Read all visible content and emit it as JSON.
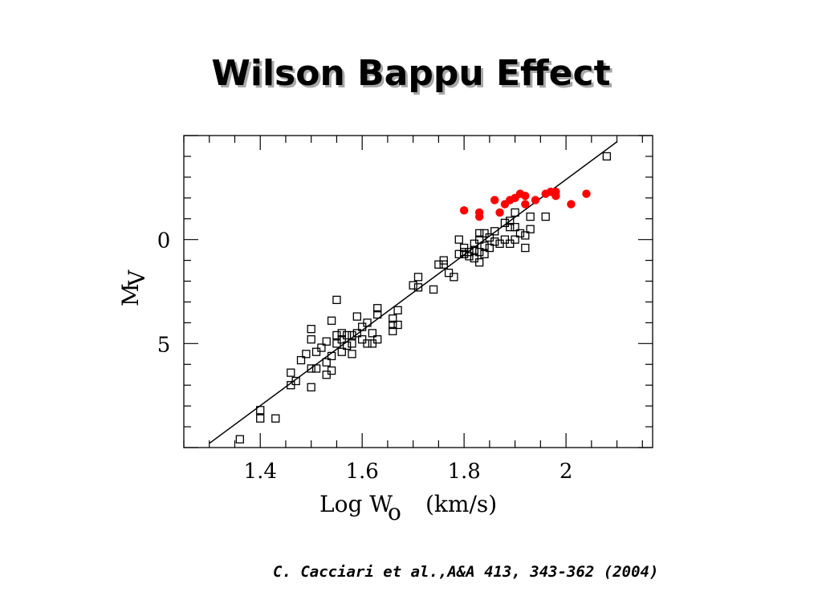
{
  "slide": {
    "title": "Wilson Bappu Effect",
    "citation": "C. Cacciari et al.,A&A 413, 343-362 (2004)"
  },
  "chart_data": {
    "type": "scatter",
    "xlabel": "Log W",
    "xlabel_subscript": "o",
    "xlabel_unit": "(km/s)",
    "ylabel": "M",
    "ylabel_subscript": "V",
    "xlim": [
      1.25,
      2.17
    ],
    "ylim": [
      10,
      -5
    ],
    "y_inverted": true,
    "xticks": [
      1.4,
      1.6,
      1.8,
      2.0
    ],
    "xtick_labels": [
      "1.4",
      "1.6",
      "1.8",
      "2"
    ],
    "yticks": [
      0,
      5
    ],
    "ytick_labels": [
      "0",
      "5"
    ],
    "grid": false,
    "fit_line": {
      "x": [
        1.3,
        2.1
      ],
      "y": [
        9.8,
        -4.7
      ],
      "color": "#000000"
    },
    "series": [
      {
        "marker": "open-square",
        "color": "#000000",
        "points": [
          [
            1.36,
            9.6
          ],
          [
            1.4,
            8.2
          ],
          [
            1.4,
            8.6
          ],
          [
            1.43,
            8.6
          ],
          [
            1.46,
            6.4
          ],
          [
            1.46,
            7.0
          ],
          [
            1.47,
            6.8
          ],
          [
            1.48,
            5.8
          ],
          [
            1.49,
            5.5
          ],
          [
            1.5,
            4.3
          ],
          [
            1.5,
            4.8
          ],
          [
            1.5,
            6.2
          ],
          [
            1.5,
            7.1
          ],
          [
            1.51,
            5.4
          ],
          [
            1.51,
            6.2
          ],
          [
            1.52,
            5.2
          ],
          [
            1.53,
            4.9
          ],
          [
            1.53,
            5.9
          ],
          [
            1.53,
            6.5
          ],
          [
            1.54,
            3.9
          ],
          [
            1.54,
            5.6
          ],
          [
            1.54,
            6.3
          ],
          [
            1.55,
            2.9
          ],
          [
            1.55,
            4.6
          ],
          [
            1.55,
            5.0
          ],
          [
            1.56,
            4.5
          ],
          [
            1.56,
            5.4
          ],
          [
            1.56,
            4.8
          ],
          [
            1.57,
            4.6
          ],
          [
            1.57,
            5.1
          ],
          [
            1.58,
            4.6
          ],
          [
            1.58,
            5.0
          ],
          [
            1.58,
            5.5
          ],
          [
            1.59,
            3.7
          ],
          [
            1.59,
            4.5
          ],
          [
            1.6,
            4.2
          ],
          [
            1.6,
            4.8
          ],
          [
            1.61,
            4.0
          ],
          [
            1.61,
            5.0
          ],
          [
            1.62,
            4.5
          ],
          [
            1.62,
            5.0
          ],
          [
            1.63,
            3.3
          ],
          [
            1.63,
            3.6
          ],
          [
            1.63,
            4.8
          ],
          [
            1.66,
            3.8
          ],
          [
            1.66,
            4.1
          ],
          [
            1.66,
            4.4
          ],
          [
            1.67,
            3.4
          ],
          [
            1.67,
            4.1
          ],
          [
            1.7,
            2.2
          ],
          [
            1.71,
            1.8
          ],
          [
            1.71,
            2.3
          ],
          [
            1.74,
            2.4
          ],
          [
            1.75,
            1.2
          ],
          [
            1.76,
            1.0
          ],
          [
            1.76,
            1.2
          ],
          [
            1.77,
            1.6
          ],
          [
            1.78,
            1.8
          ],
          [
            1.79,
            0.7
          ],
          [
            1.79,
            0.0
          ],
          [
            1.8,
            0.4
          ],
          [
            1.8,
            0.6
          ],
          [
            1.8,
            0.7
          ],
          [
            1.81,
            0.8
          ],
          [
            1.81,
            0.6
          ],
          [
            1.82,
            0.2
          ],
          [
            1.82,
            0.5
          ],
          [
            1.82,
            0.9
          ],
          [
            1.83,
            -0.3
          ],
          [
            1.83,
            0.0
          ],
          [
            1.83,
            0.6
          ],
          [
            1.83,
            1.1
          ],
          [
            1.84,
            -0.3
          ],
          [
            1.84,
            0.3
          ],
          [
            1.84,
            0.7
          ],
          [
            1.85,
            0.4
          ],
          [
            1.85,
            -0.1
          ],
          [
            1.86,
            0.1
          ],
          [
            1.86,
            -0.4
          ],
          [
            1.87,
            0.2
          ],
          [
            1.88,
            0.0
          ],
          [
            1.88,
            -0.8
          ],
          [
            1.89,
            -0.9
          ],
          [
            1.89,
            0.2
          ],
          [
            1.89,
            -0.6
          ],
          [
            1.9,
            -1.3
          ],
          [
            1.9,
            -0.6
          ],
          [
            1.9,
            0.0
          ],
          [
            1.91,
            -0.3
          ],
          [
            1.92,
            -0.2
          ],
          [
            1.92,
            0.4
          ],
          [
            1.93,
            -0.5
          ],
          [
            1.93,
            -1.1
          ],
          [
            1.96,
            -1.1
          ],
          [
            2.08,
            -4.0
          ]
        ]
      },
      {
        "marker": "filled-circle",
        "color": "#ff0000",
        "points": [
          [
            1.8,
            -1.4
          ],
          [
            1.83,
            -1.3
          ],
          [
            1.83,
            -1.1
          ],
          [
            1.86,
            -1.9
          ],
          [
            1.87,
            -1.3
          ],
          [
            1.88,
            -1.7
          ],
          [
            1.89,
            -1.9
          ],
          [
            1.9,
            -2.0
          ],
          [
            1.91,
            -2.2
          ],
          [
            1.92,
            -2.1
          ],
          [
            1.92,
            -1.7
          ],
          [
            1.94,
            -1.9
          ],
          [
            1.96,
            -2.2
          ],
          [
            1.97,
            -2.3
          ],
          [
            1.98,
            -2.1
          ],
          [
            1.98,
            -2.3
          ],
          [
            2.01,
            -1.7
          ],
          [
            2.04,
            -2.2
          ]
        ]
      }
    ]
  }
}
